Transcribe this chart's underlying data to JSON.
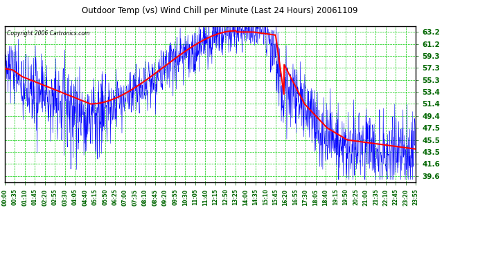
{
  "title": "Outdoor Temp (vs) Wind Chill per Minute (Last 24 Hours) 20061109",
  "copyright_text": "Copyright 2006 Cartronics.com",
  "y_ticks": [
    39.6,
    41.6,
    43.5,
    45.5,
    47.5,
    49.4,
    51.4,
    53.4,
    55.3,
    57.3,
    59.3,
    61.2,
    63.2
  ],
  "y_min": 38.5,
  "y_max": 64.2,
  "x_labels": [
    "00:00",
    "00:35",
    "01:10",
    "01:45",
    "02:20",
    "02:55",
    "03:30",
    "04:05",
    "04:40",
    "05:15",
    "05:50",
    "06:25",
    "07:00",
    "07:35",
    "08:10",
    "08:45",
    "09:20",
    "09:55",
    "10:30",
    "11:05",
    "11:40",
    "12:15",
    "12:50",
    "13:25",
    "14:00",
    "14:35",
    "15:10",
    "15:45",
    "16:20",
    "16:55",
    "17:30",
    "18:05",
    "18:40",
    "19:15",
    "19:50",
    "20:25",
    "21:00",
    "21:35",
    "22:10",
    "22:45",
    "23:20",
    "23:55"
  ],
  "bg_color": "#ffffff",
  "plot_bg_color": "#ffffff",
  "grid_color": "#00cc00",
  "blue_line_color": "#0000ff",
  "red_line_color": "#ff0000",
  "title_color": "#000000",
  "copyright_color": "#000000"
}
